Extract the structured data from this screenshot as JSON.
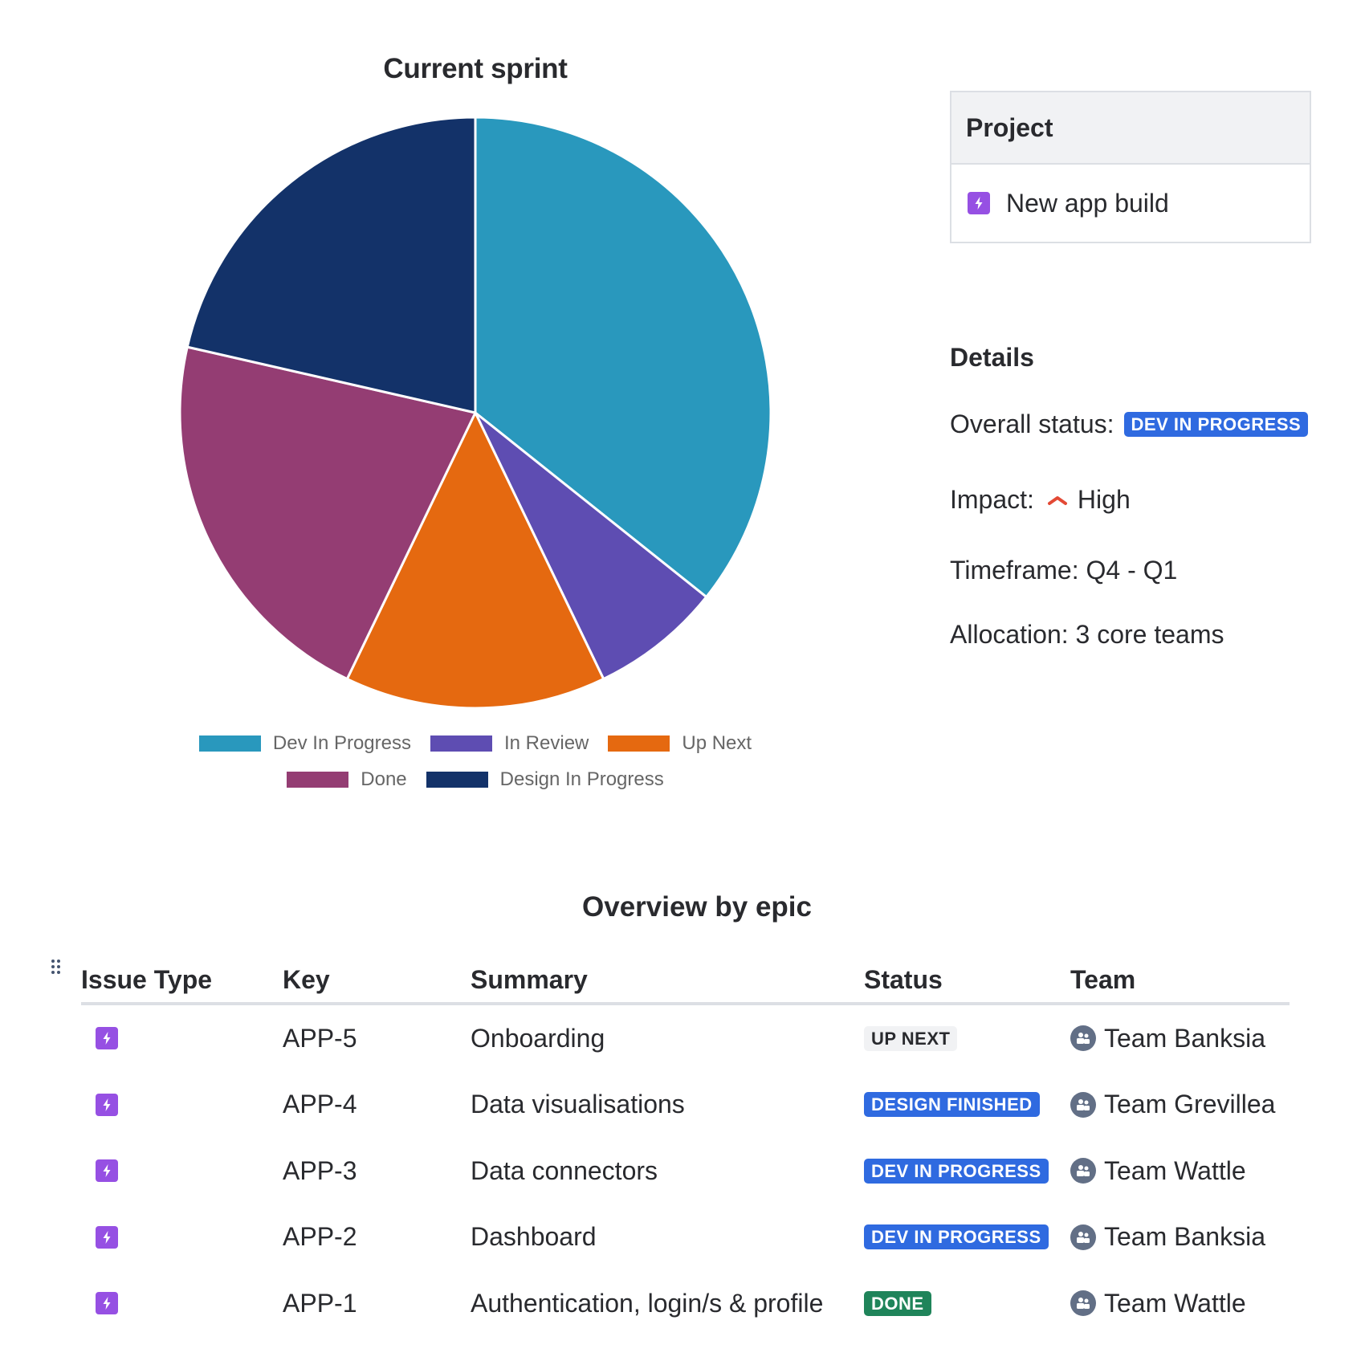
{
  "chart_data": {
    "type": "pie",
    "title": "Current sprint",
    "categories": [
      "Dev In Progress",
      "In Review",
      "Up Next",
      "Done",
      "Design In Progress"
    ],
    "values": [
      5,
      1,
      2,
      3,
      3
    ],
    "percentages": [
      35.7,
      7.1,
      14.3,
      21.4,
      21.4
    ],
    "colors": [
      "#2998bd",
      "#5e4db2",
      "#e56910",
      "#943d73",
      "#133269"
    ],
    "legend_position": "bottom",
    "start_angle": "12 o'clock, clockwise"
  },
  "chart": {
    "title": "Current sprint",
    "legend": [
      {
        "label": "Dev In Progress",
        "color": "#2998bd"
      },
      {
        "label": "In Review",
        "color": "#5e4db2"
      },
      {
        "label": "Up Next",
        "color": "#e56910"
      },
      {
        "label": "Done",
        "color": "#943d73"
      },
      {
        "label": "Design In Progress",
        "color": "#133269"
      }
    ]
  },
  "project_card": {
    "header": "Project",
    "icon": "epic-lightning-icon",
    "name": "New app build"
  },
  "details": {
    "title": "Details",
    "overall_status_label": "Overall status:",
    "overall_status_value": "DEV IN PROGRESS",
    "impact_label": "Impact:",
    "impact_icon": "chevron-up-icon",
    "impact_value": "High",
    "timeframe": "Timeframe: Q4 - Q1",
    "allocation": "Allocation: 3 core teams"
  },
  "table": {
    "title": "Overview by epic",
    "columns": [
      "Issue Type",
      "Key",
      "Summary",
      "Status",
      "Team"
    ],
    "rows": [
      {
        "type_icon": "epic-lightning-icon",
        "key": "APP-5",
        "summary": "Onboarding",
        "status": "UP NEXT",
        "status_color": "grey",
        "team": "Team Banksia"
      },
      {
        "type_icon": "epic-lightning-icon",
        "key": "APP-4",
        "summary": "Data visualisations",
        "status": "DESIGN FINISHED",
        "status_color": "blue",
        "team": "Team Grevillea"
      },
      {
        "type_icon": "epic-lightning-icon",
        "key": "APP-3",
        "summary": "Data connectors",
        "status": "DEV IN PROGRESS",
        "status_color": "blue",
        "team": "Team Wattle"
      },
      {
        "type_icon": "epic-lightning-icon",
        "key": "APP-2",
        "summary": "Dashboard",
        "status": "DEV IN PROGRESS",
        "status_color": "blue",
        "team": "Team Banksia"
      },
      {
        "type_icon": "epic-lightning-icon",
        "key": "APP-1",
        "summary": "Authentication, login/s & profile",
        "status": "DONE",
        "status_color": "green",
        "team": "Team Wattle"
      }
    ]
  }
}
